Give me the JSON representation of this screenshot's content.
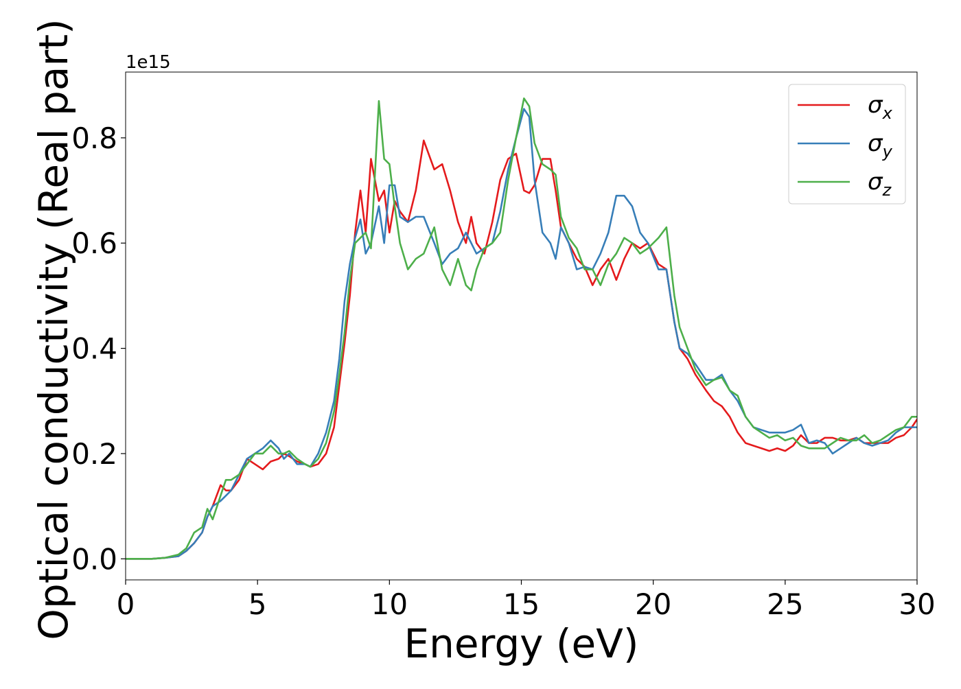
{
  "chart_data": {
    "type": "line",
    "title": "",
    "xlabel": "Energy (eV)",
    "ylabel": "Optical conductivity (Real part)",
    "y_offset_text": "1e15",
    "xlim": [
      0,
      30
    ],
    "ylim": [
      -0.04,
      0.925
    ],
    "x_ticks": [
      0,
      5,
      10,
      15,
      20,
      25,
      30
    ],
    "x_tick_labels": [
      "0",
      "5",
      "10",
      "15",
      "20",
      "25",
      "30"
    ],
    "y_ticks": [
      0.0,
      0.2,
      0.4,
      0.6,
      0.8
    ],
    "y_tick_labels": [
      "0.0",
      "0.2",
      "0.4",
      "0.6",
      "0.8"
    ],
    "grid": false,
    "legend_position": "top-right",
    "series": [
      {
        "name": "σx",
        "legend_base": "σ",
        "legend_sub": "x",
        "color": "#e41a1c",
        "x": [
          0,
          1,
          1.5,
          2,
          2.3,
          2.6,
          2.9,
          3.1,
          3.3,
          3.6,
          3.8,
          4.0,
          4.3,
          4.6,
          4.9,
          5.2,
          5.5,
          5.8,
          6.0,
          6.2,
          6.5,
          6.8,
          7.0,
          7.3,
          7.6,
          7.9,
          8.1,
          8.3,
          8.5,
          8.7,
          8.9,
          9.1,
          9.3,
          9.6,
          9.8,
          10.0,
          10.2,
          10.4,
          10.7,
          11.0,
          11.3,
          11.7,
          12.0,
          12.3,
          12.6,
          12.9,
          13.1,
          13.3,
          13.6,
          13.9,
          14.2,
          14.5,
          14.8,
          15.1,
          15.3,
          15.5,
          15.8,
          16.1,
          16.3,
          16.5,
          16.8,
          17.1,
          17.4,
          17.7,
          18.0,
          18.3,
          18.6,
          18.9,
          19.2,
          19.5,
          19.8,
          20.2,
          20.5,
          20.8,
          21.0,
          21.3,
          21.6,
          22.0,
          22.3,
          22.6,
          22.9,
          23.2,
          23.5,
          23.8,
          24.1,
          24.4,
          24.7,
          25.0,
          25.3,
          25.6,
          25.9,
          26.2,
          26.5,
          26.8,
          27.1,
          27.4,
          27.7,
          28.0,
          28.3,
          28.6,
          28.9,
          29.2,
          29.5,
          29.8,
          30.0
        ],
        "y": [
          0.0,
          0.0,
          0.002,
          0.005,
          0.015,
          0.03,
          0.05,
          0.08,
          0.1,
          0.14,
          0.13,
          0.13,
          0.15,
          0.19,
          0.18,
          0.17,
          0.185,
          0.19,
          0.2,
          0.195,
          0.185,
          0.18,
          0.175,
          0.18,
          0.2,
          0.25,
          0.33,
          0.41,
          0.5,
          0.62,
          0.7,
          0.62,
          0.76,
          0.68,
          0.7,
          0.62,
          0.68,
          0.66,
          0.64,
          0.7,
          0.795,
          0.74,
          0.75,
          0.7,
          0.64,
          0.6,
          0.65,
          0.6,
          0.58,
          0.64,
          0.72,
          0.76,
          0.77,
          0.7,
          0.695,
          0.71,
          0.76,
          0.76,
          0.7,
          0.63,
          0.6,
          0.57,
          0.555,
          0.52,
          0.55,
          0.57,
          0.53,
          0.57,
          0.6,
          0.59,
          0.6,
          0.56,
          0.55,
          0.45,
          0.4,
          0.38,
          0.35,
          0.32,
          0.3,
          0.29,
          0.27,
          0.24,
          0.22,
          0.215,
          0.21,
          0.205,
          0.21,
          0.205,
          0.215,
          0.235,
          0.22,
          0.22,
          0.23,
          0.23,
          0.225,
          0.225,
          0.23,
          0.22,
          0.22,
          0.22,
          0.22,
          0.23,
          0.235,
          0.25,
          0.265
        ]
      },
      {
        "name": "σy",
        "legend_base": "σ",
        "legend_sub": "y",
        "color": "#377eb8",
        "x": [
          0,
          1,
          1.5,
          2,
          2.3,
          2.6,
          2.9,
          3.1,
          3.3,
          3.6,
          3.8,
          4.0,
          4.3,
          4.6,
          4.9,
          5.2,
          5.5,
          5.8,
          6.0,
          6.2,
          6.5,
          6.8,
          7.0,
          7.3,
          7.6,
          7.9,
          8.1,
          8.3,
          8.5,
          8.7,
          8.9,
          9.1,
          9.3,
          9.6,
          9.8,
          10.0,
          10.2,
          10.4,
          10.7,
          11.0,
          11.3,
          11.7,
          12.0,
          12.3,
          12.6,
          12.9,
          13.1,
          13.3,
          13.6,
          13.9,
          14.2,
          14.5,
          14.8,
          15.1,
          15.3,
          15.5,
          15.8,
          16.1,
          16.3,
          16.5,
          16.8,
          17.1,
          17.4,
          17.7,
          18.0,
          18.3,
          18.6,
          18.9,
          19.2,
          19.5,
          19.8,
          20.2,
          20.5,
          20.8,
          21.0,
          21.3,
          21.6,
          22.0,
          22.3,
          22.6,
          22.9,
          23.2,
          23.5,
          23.8,
          24.1,
          24.4,
          24.7,
          25.0,
          25.3,
          25.6,
          25.9,
          26.2,
          26.5,
          26.8,
          27.1,
          27.4,
          27.7,
          28.0,
          28.3,
          28.6,
          28.9,
          29.2,
          29.5,
          29.8,
          30.0
        ],
        "y": [
          0.0,
          0.0,
          0.002,
          0.005,
          0.015,
          0.03,
          0.05,
          0.08,
          0.1,
          0.11,
          0.12,
          0.13,
          0.16,
          0.19,
          0.2,
          0.21,
          0.225,
          0.21,
          0.19,
          0.2,
          0.18,
          0.18,
          0.175,
          0.2,
          0.24,
          0.3,
          0.38,
          0.49,
          0.56,
          0.61,
          0.645,
          0.58,
          0.6,
          0.67,
          0.6,
          0.71,
          0.71,
          0.65,
          0.64,
          0.65,
          0.65,
          0.6,
          0.56,
          0.58,
          0.59,
          0.62,
          0.6,
          0.58,
          0.59,
          0.6,
          0.66,
          0.74,
          0.8,
          0.855,
          0.84,
          0.72,
          0.62,
          0.6,
          0.57,
          0.63,
          0.6,
          0.55,
          0.555,
          0.55,
          0.58,
          0.62,
          0.69,
          0.69,
          0.67,
          0.62,
          0.6,
          0.55,
          0.55,
          0.45,
          0.4,
          0.39,
          0.37,
          0.34,
          0.34,
          0.35,
          0.32,
          0.3,
          0.27,
          0.25,
          0.245,
          0.24,
          0.24,
          0.24,
          0.245,
          0.255,
          0.22,
          0.225,
          0.22,
          0.2,
          0.21,
          0.22,
          0.23,
          0.22,
          0.215,
          0.22,
          0.225,
          0.24,
          0.25,
          0.25,
          0.25
        ]
      },
      {
        "name": "σz",
        "legend_base": "σ",
        "legend_sub": "z",
        "color": "#4daf4a",
        "x": [
          0,
          1,
          1.5,
          2,
          2.3,
          2.6,
          2.9,
          3.1,
          3.3,
          3.6,
          3.8,
          4.0,
          4.3,
          4.6,
          4.9,
          5.2,
          5.5,
          5.8,
          6.0,
          6.2,
          6.5,
          6.8,
          7.0,
          7.3,
          7.6,
          7.9,
          8.1,
          8.3,
          8.5,
          8.7,
          8.9,
          9.1,
          9.3,
          9.6,
          9.8,
          10.0,
          10.2,
          10.4,
          10.7,
          11.0,
          11.3,
          11.7,
          12.0,
          12.3,
          12.6,
          12.9,
          13.1,
          13.3,
          13.6,
          13.9,
          14.2,
          14.5,
          14.8,
          15.1,
          15.3,
          15.5,
          15.8,
          16.1,
          16.3,
          16.5,
          16.8,
          17.1,
          17.4,
          17.7,
          18.0,
          18.3,
          18.6,
          18.9,
          19.2,
          19.5,
          19.8,
          20.2,
          20.5,
          20.8,
          21.0,
          21.3,
          21.6,
          22.0,
          22.3,
          22.6,
          22.9,
          23.2,
          23.5,
          23.8,
          24.1,
          24.4,
          24.7,
          25.0,
          25.3,
          25.6,
          25.9,
          26.2,
          26.5,
          26.8,
          27.1,
          27.4,
          27.7,
          28.0,
          28.3,
          28.6,
          28.9,
          29.2,
          29.5,
          29.8,
          30.0
        ],
        "y": [
          0.0,
          0.0,
          0.002,
          0.008,
          0.02,
          0.05,
          0.06,
          0.095,
          0.075,
          0.12,
          0.15,
          0.15,
          0.16,
          0.18,
          0.2,
          0.2,
          0.215,
          0.2,
          0.2,
          0.205,
          0.19,
          0.18,
          0.175,
          0.19,
          0.22,
          0.28,
          0.35,
          0.43,
          0.53,
          0.6,
          0.61,
          0.62,
          0.59,
          0.87,
          0.76,
          0.75,
          0.67,
          0.6,
          0.55,
          0.57,
          0.58,
          0.63,
          0.55,
          0.52,
          0.57,
          0.52,
          0.51,
          0.55,
          0.59,
          0.6,
          0.62,
          0.72,
          0.8,
          0.875,
          0.86,
          0.79,
          0.75,
          0.74,
          0.73,
          0.65,
          0.61,
          0.59,
          0.55,
          0.55,
          0.52,
          0.56,
          0.58,
          0.61,
          0.6,
          0.58,
          0.59,
          0.61,
          0.63,
          0.5,
          0.44,
          0.4,
          0.36,
          0.33,
          0.34,
          0.345,
          0.32,
          0.31,
          0.27,
          0.25,
          0.24,
          0.23,
          0.235,
          0.225,
          0.23,
          0.215,
          0.21,
          0.21,
          0.21,
          0.22,
          0.23,
          0.225,
          0.225,
          0.235,
          0.22,
          0.225,
          0.235,
          0.245,
          0.25,
          0.27,
          0.27
        ]
      }
    ]
  }
}
